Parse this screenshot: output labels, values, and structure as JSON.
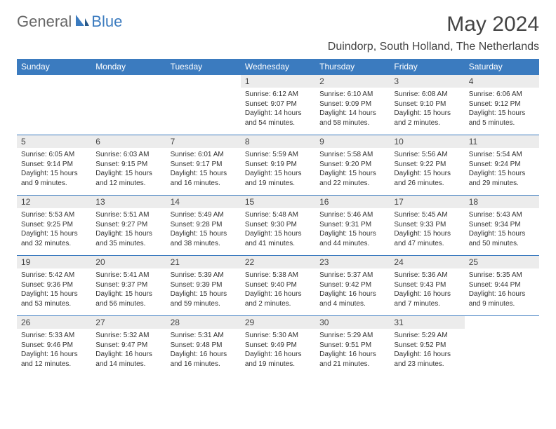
{
  "brand": {
    "part1": "General",
    "part2": "Blue"
  },
  "title": "May 2024",
  "location": "Duindorp, South Holland, The Netherlands",
  "colors": {
    "header_bg": "#3b7bbf",
    "header_text": "#ffffff",
    "daynum_bg": "#ececec",
    "border": "#3b7bbf",
    "text": "#333333",
    "background": "#ffffff"
  },
  "weekdays": [
    "Sunday",
    "Monday",
    "Tuesday",
    "Wednesday",
    "Thursday",
    "Friday",
    "Saturday"
  ],
  "weeks": [
    [
      {
        "empty": true
      },
      {
        "empty": true
      },
      {
        "empty": true
      },
      {
        "n": "1",
        "sunrise": "6:12 AM",
        "sunset": "9:07 PM",
        "daylight": "14 hours and 54 minutes."
      },
      {
        "n": "2",
        "sunrise": "6:10 AM",
        "sunset": "9:09 PM",
        "daylight": "14 hours and 58 minutes."
      },
      {
        "n": "3",
        "sunrise": "6:08 AM",
        "sunset": "9:10 PM",
        "daylight": "15 hours and 2 minutes."
      },
      {
        "n": "4",
        "sunrise": "6:06 AM",
        "sunset": "9:12 PM",
        "daylight": "15 hours and 5 minutes."
      }
    ],
    [
      {
        "n": "5",
        "sunrise": "6:05 AM",
        "sunset": "9:14 PM",
        "daylight": "15 hours and 9 minutes."
      },
      {
        "n": "6",
        "sunrise": "6:03 AM",
        "sunset": "9:15 PM",
        "daylight": "15 hours and 12 minutes."
      },
      {
        "n": "7",
        "sunrise": "6:01 AM",
        "sunset": "9:17 PM",
        "daylight": "15 hours and 16 minutes."
      },
      {
        "n": "8",
        "sunrise": "5:59 AM",
        "sunset": "9:19 PM",
        "daylight": "15 hours and 19 minutes."
      },
      {
        "n": "9",
        "sunrise": "5:58 AM",
        "sunset": "9:20 PM",
        "daylight": "15 hours and 22 minutes."
      },
      {
        "n": "10",
        "sunrise": "5:56 AM",
        "sunset": "9:22 PM",
        "daylight": "15 hours and 26 minutes."
      },
      {
        "n": "11",
        "sunrise": "5:54 AM",
        "sunset": "9:24 PM",
        "daylight": "15 hours and 29 minutes."
      }
    ],
    [
      {
        "n": "12",
        "sunrise": "5:53 AM",
        "sunset": "9:25 PM",
        "daylight": "15 hours and 32 minutes."
      },
      {
        "n": "13",
        "sunrise": "5:51 AM",
        "sunset": "9:27 PM",
        "daylight": "15 hours and 35 minutes."
      },
      {
        "n": "14",
        "sunrise": "5:49 AM",
        "sunset": "9:28 PM",
        "daylight": "15 hours and 38 minutes."
      },
      {
        "n": "15",
        "sunrise": "5:48 AM",
        "sunset": "9:30 PM",
        "daylight": "15 hours and 41 minutes."
      },
      {
        "n": "16",
        "sunrise": "5:46 AM",
        "sunset": "9:31 PM",
        "daylight": "15 hours and 44 minutes."
      },
      {
        "n": "17",
        "sunrise": "5:45 AM",
        "sunset": "9:33 PM",
        "daylight": "15 hours and 47 minutes."
      },
      {
        "n": "18",
        "sunrise": "5:43 AM",
        "sunset": "9:34 PM",
        "daylight": "15 hours and 50 minutes."
      }
    ],
    [
      {
        "n": "19",
        "sunrise": "5:42 AM",
        "sunset": "9:36 PM",
        "daylight": "15 hours and 53 minutes."
      },
      {
        "n": "20",
        "sunrise": "5:41 AM",
        "sunset": "9:37 PM",
        "daylight": "15 hours and 56 minutes."
      },
      {
        "n": "21",
        "sunrise": "5:39 AM",
        "sunset": "9:39 PM",
        "daylight": "15 hours and 59 minutes."
      },
      {
        "n": "22",
        "sunrise": "5:38 AM",
        "sunset": "9:40 PM",
        "daylight": "16 hours and 2 minutes."
      },
      {
        "n": "23",
        "sunrise": "5:37 AM",
        "sunset": "9:42 PM",
        "daylight": "16 hours and 4 minutes."
      },
      {
        "n": "24",
        "sunrise": "5:36 AM",
        "sunset": "9:43 PM",
        "daylight": "16 hours and 7 minutes."
      },
      {
        "n": "25",
        "sunrise": "5:35 AM",
        "sunset": "9:44 PM",
        "daylight": "16 hours and 9 minutes."
      }
    ],
    [
      {
        "n": "26",
        "sunrise": "5:33 AM",
        "sunset": "9:46 PM",
        "daylight": "16 hours and 12 minutes."
      },
      {
        "n": "27",
        "sunrise": "5:32 AM",
        "sunset": "9:47 PM",
        "daylight": "16 hours and 14 minutes."
      },
      {
        "n": "28",
        "sunrise": "5:31 AM",
        "sunset": "9:48 PM",
        "daylight": "16 hours and 16 minutes."
      },
      {
        "n": "29",
        "sunrise": "5:30 AM",
        "sunset": "9:49 PM",
        "daylight": "16 hours and 19 minutes."
      },
      {
        "n": "30",
        "sunrise": "5:29 AM",
        "sunset": "9:51 PM",
        "daylight": "16 hours and 21 minutes."
      },
      {
        "n": "31",
        "sunrise": "5:29 AM",
        "sunset": "9:52 PM",
        "daylight": "16 hours and 23 minutes."
      },
      {
        "empty": true
      }
    ]
  ],
  "labels": {
    "sunrise": "Sunrise:",
    "sunset": "Sunset:",
    "daylight": "Daylight:"
  }
}
